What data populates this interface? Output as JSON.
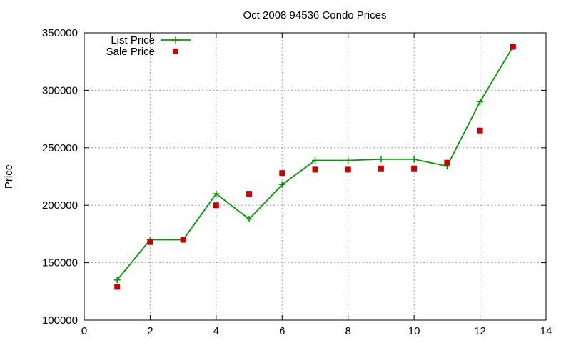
{
  "chart_data": {
    "type": "line",
    "title": "Oct 2008 94536 Condo Prices",
    "xlabel": "",
    "ylabel": "Price",
    "xlim": [
      0,
      14
    ],
    "ylim": [
      100000,
      350000
    ],
    "x_ticks": [
      "0",
      "2",
      "4",
      "6",
      "8",
      "10",
      "12",
      "14"
    ],
    "y_ticks": [
      "100000",
      "150000",
      "200000",
      "250000",
      "300000",
      "350000"
    ],
    "grid": true,
    "legend_position": "top-left",
    "series": [
      {
        "name": "List Price",
        "style": "lines+points",
        "color": "#009900",
        "marker": "plus",
        "x": [
          1,
          2,
          3,
          4,
          5,
          6,
          7,
          8,
          9,
          10,
          11,
          12,
          13
        ],
        "y": [
          135000,
          170000,
          170000,
          210000,
          188000,
          218000,
          239000,
          239000,
          240000,
          240000,
          234000,
          290000,
          338000
        ]
      },
      {
        "name": "Sale Price",
        "style": "points",
        "color": "#cc0000",
        "marker": "square",
        "x": [
          1,
          2,
          3,
          4,
          5,
          6,
          7,
          8,
          9,
          10,
          11,
          12,
          13
        ],
        "y": [
          129000,
          168000,
          170000,
          200000,
          210000,
          228000,
          231000,
          231000,
          232000,
          232000,
          237000,
          265000,
          338000
        ]
      }
    ]
  }
}
